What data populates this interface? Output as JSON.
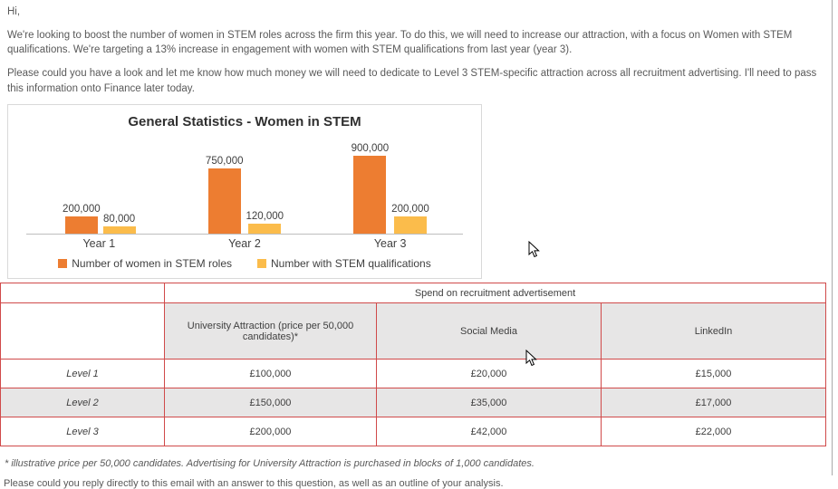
{
  "email": {
    "greeting": "Hi,",
    "para1": "We're looking to boost the number of women in STEM roles across the firm this year. To do this, we will need to increase our attraction, with a focus on Women with STEM qualifications. We're targeting a 13% increase in engagement with women with STEM qualifications from last year (year 3).",
    "para2": "Please could you have a look and let me know how much money we will need to dedicate to Level 3 STEM-specific attraction across all recruitment advertising. I'll need to pass this information onto Finance later today.",
    "footnote": "* illustrative price per 50,000 candidates. Advertising for University Attraction is purchased in blocks of 1,000 candidates.",
    "closing": "Please could you reply directly to this email with an answer to this question, as well as an outline of your analysis."
  },
  "chart_data": {
    "type": "bar",
    "title": "General Statistics - Women in STEM",
    "categories": [
      "Year 1",
      "Year 2",
      "Year 3"
    ],
    "series": [
      {
        "name": "Number of women in STEM roles",
        "color": "#ED7D31",
        "values": [
          200000,
          750000,
          900000
        ]
      },
      {
        "name": "Number with STEM qualifications",
        "color": "#FBBC4B",
        "values": [
          80000,
          120000,
          200000
        ]
      }
    ],
    "ylim": [
      0,
      900000
    ],
    "grid": false,
    "legend_position": "bottom",
    "data_labels": true
  },
  "table": {
    "span_header": "Spend on recruitment advertisement",
    "columns": [
      "University Attraction (price per 50,000 candidates)*",
      "Social Media",
      "LinkedIn"
    ],
    "rows": [
      {
        "label": "Level 1",
        "values": [
          "£100,000",
          "£20,000",
          "£15,000"
        ]
      },
      {
        "label": "Level 2",
        "values": [
          "£150,000",
          "£35,000",
          "£17,000"
        ]
      },
      {
        "label": "Level 3",
        "values": [
          "£200,000",
          "£42,000",
          "£22,000"
        ]
      }
    ]
  },
  "colors": {
    "table_border": "#d04a4a",
    "row_shade": "#e7e6e6",
    "text_main": "#595959"
  }
}
